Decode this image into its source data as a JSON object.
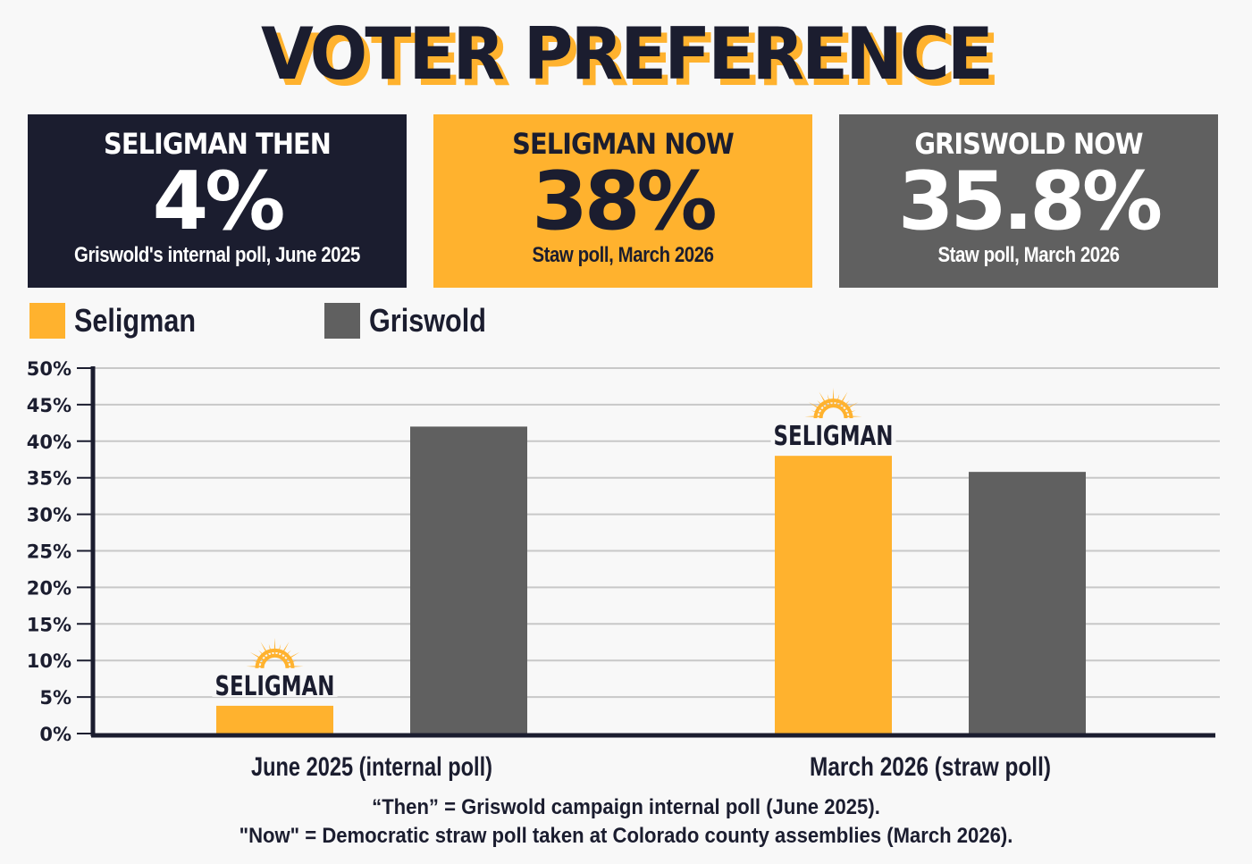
{
  "title": "VOTER PREFERENCE",
  "cards": [
    {
      "heading": "SELIGMAN THEN",
      "value": "4%",
      "sub": "Griswold's internal poll, June 2025"
    },
    {
      "heading": "SELIGMAN NOW",
      "value": "38%",
      "sub": "Staw poll, March 2026"
    },
    {
      "heading": "GRISWOLD NOW",
      "value": "35.8%",
      "sub": "Staw poll, March 2026"
    }
  ],
  "logo_text": "SELIGMAN",
  "colors": {
    "seligman": "#ffb22e",
    "griswold": "#606060",
    "navy": "#1b1d2f",
    "grid": "#c8c8c8"
  },
  "chart_data": {
    "type": "bar",
    "categories": [
      "June 2025 (internal poll)",
      "March 2026 (straw poll)"
    ],
    "series": [
      {
        "name": "Seligman",
        "values": [
          3.8,
          38
        ]
      },
      {
        "name": "Griswold",
        "values": [
          42,
          35.8
        ]
      }
    ],
    "ylim": [
      0,
      50
    ],
    "yticks": [
      "0%",
      "5%",
      "10%",
      "15%",
      "20%",
      "25%",
      "30%",
      "35%",
      "40%",
      "45%",
      "50%"
    ],
    "grid": true,
    "legend": "top-left"
  },
  "notes": [
    "“Then” = Griswold campaign internal poll (June 2025).",
    "\"Now\" = Democratic straw poll taken at Colorado county assemblies (March 2026)."
  ]
}
